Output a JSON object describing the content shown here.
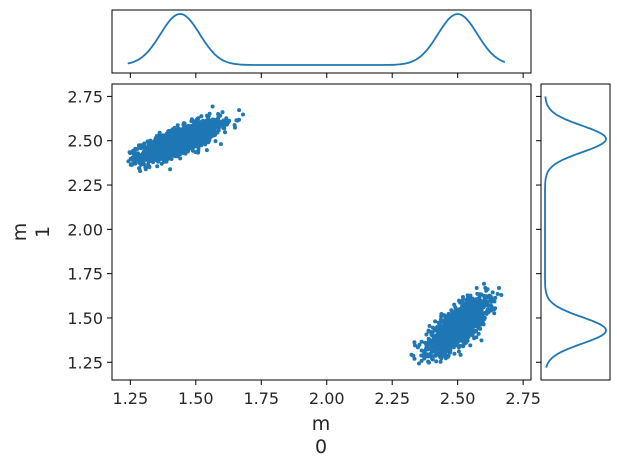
{
  "chart_data": {
    "type": "scatter",
    "title": "",
    "xlabel": "m\n0",
    "ylabel": "m\n1",
    "xlim": [
      1.18,
      2.78
    ],
    "ylim": [
      1.15,
      2.82
    ],
    "xticks": [
      "1.25",
      "1.50",
      "1.75",
      "2.00",
      "2.25",
      "2.50",
      "2.75"
    ],
    "yticks": [
      "1.25",
      "1.50",
      "1.75",
      "2.00",
      "2.25",
      "2.50",
      "2.75"
    ],
    "grid": false,
    "color": "#1f77b4",
    "clusters": [
      {
        "center": [
          1.44,
          2.5
        ],
        "sd": [
          0.075,
          0.055
        ],
        "corr": 0.75,
        "count": 1600,
        "x_range": [
          1.24,
          1.7
        ],
        "y_range": [
          2.3,
          2.75
        ]
      },
      {
        "center": [
          2.5,
          1.45
        ],
        "sd": [
          0.055,
          0.075
        ],
        "corr": 0.75,
        "count": 1600,
        "x_range": [
          2.3,
          2.68
        ],
        "y_range": [
          1.22,
          1.77
        ]
      }
    ],
    "marginal_x": {
      "peaks": [
        1.44,
        2.5
      ],
      "range": [
        1.24,
        2.68
      ]
    },
    "marginal_y": {
      "peaks": [
        1.43,
        2.51
      ],
      "range": [
        1.22,
        2.75
      ]
    }
  }
}
